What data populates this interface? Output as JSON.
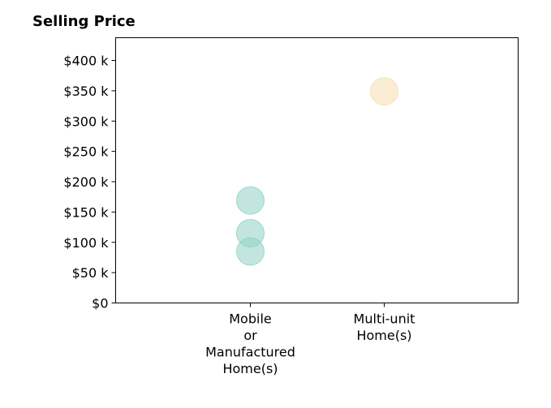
{
  "chart_data": {
    "type": "scatter",
    "title": "Selling Price",
    "xlabel": "",
    "ylabel": "",
    "categories": [
      "Mobile or Manufactured Home(s)",
      "Multi-unit Home(s)"
    ],
    "category_lines": [
      [
        "Mobile",
        "or",
        "Manufactured",
        "Home(s)"
      ],
      [
        "Multi-unit",
        "Home(s)"
      ]
    ],
    "ylim": [
      0,
      437500
    ],
    "y_ticks": [
      0,
      50000,
      100000,
      150000,
      200000,
      250000,
      300000,
      350000,
      400000
    ],
    "y_tick_labels": [
      "$0",
      "$50 k",
      "$100 k",
      "$150 k",
      "$200 k",
      "$250 k",
      "$300 k",
      "$350 k",
      "$400 k"
    ],
    "grid": false,
    "points": [
      {
        "category": "Mobile or Manufactured Home(s)",
        "value": 169000,
        "color": "#8fd1c4"
      },
      {
        "category": "Mobile or Manufactured Home(s)",
        "value": 115000,
        "color": "#8fd1c4"
      },
      {
        "category": "Mobile or Manufactured Home(s)",
        "value": 85000,
        "color": "#8fd1c4"
      },
      {
        "category": "Multi-unit Home(s)",
        "value": 349000,
        "color": "#f6deb0"
      }
    ]
  }
}
